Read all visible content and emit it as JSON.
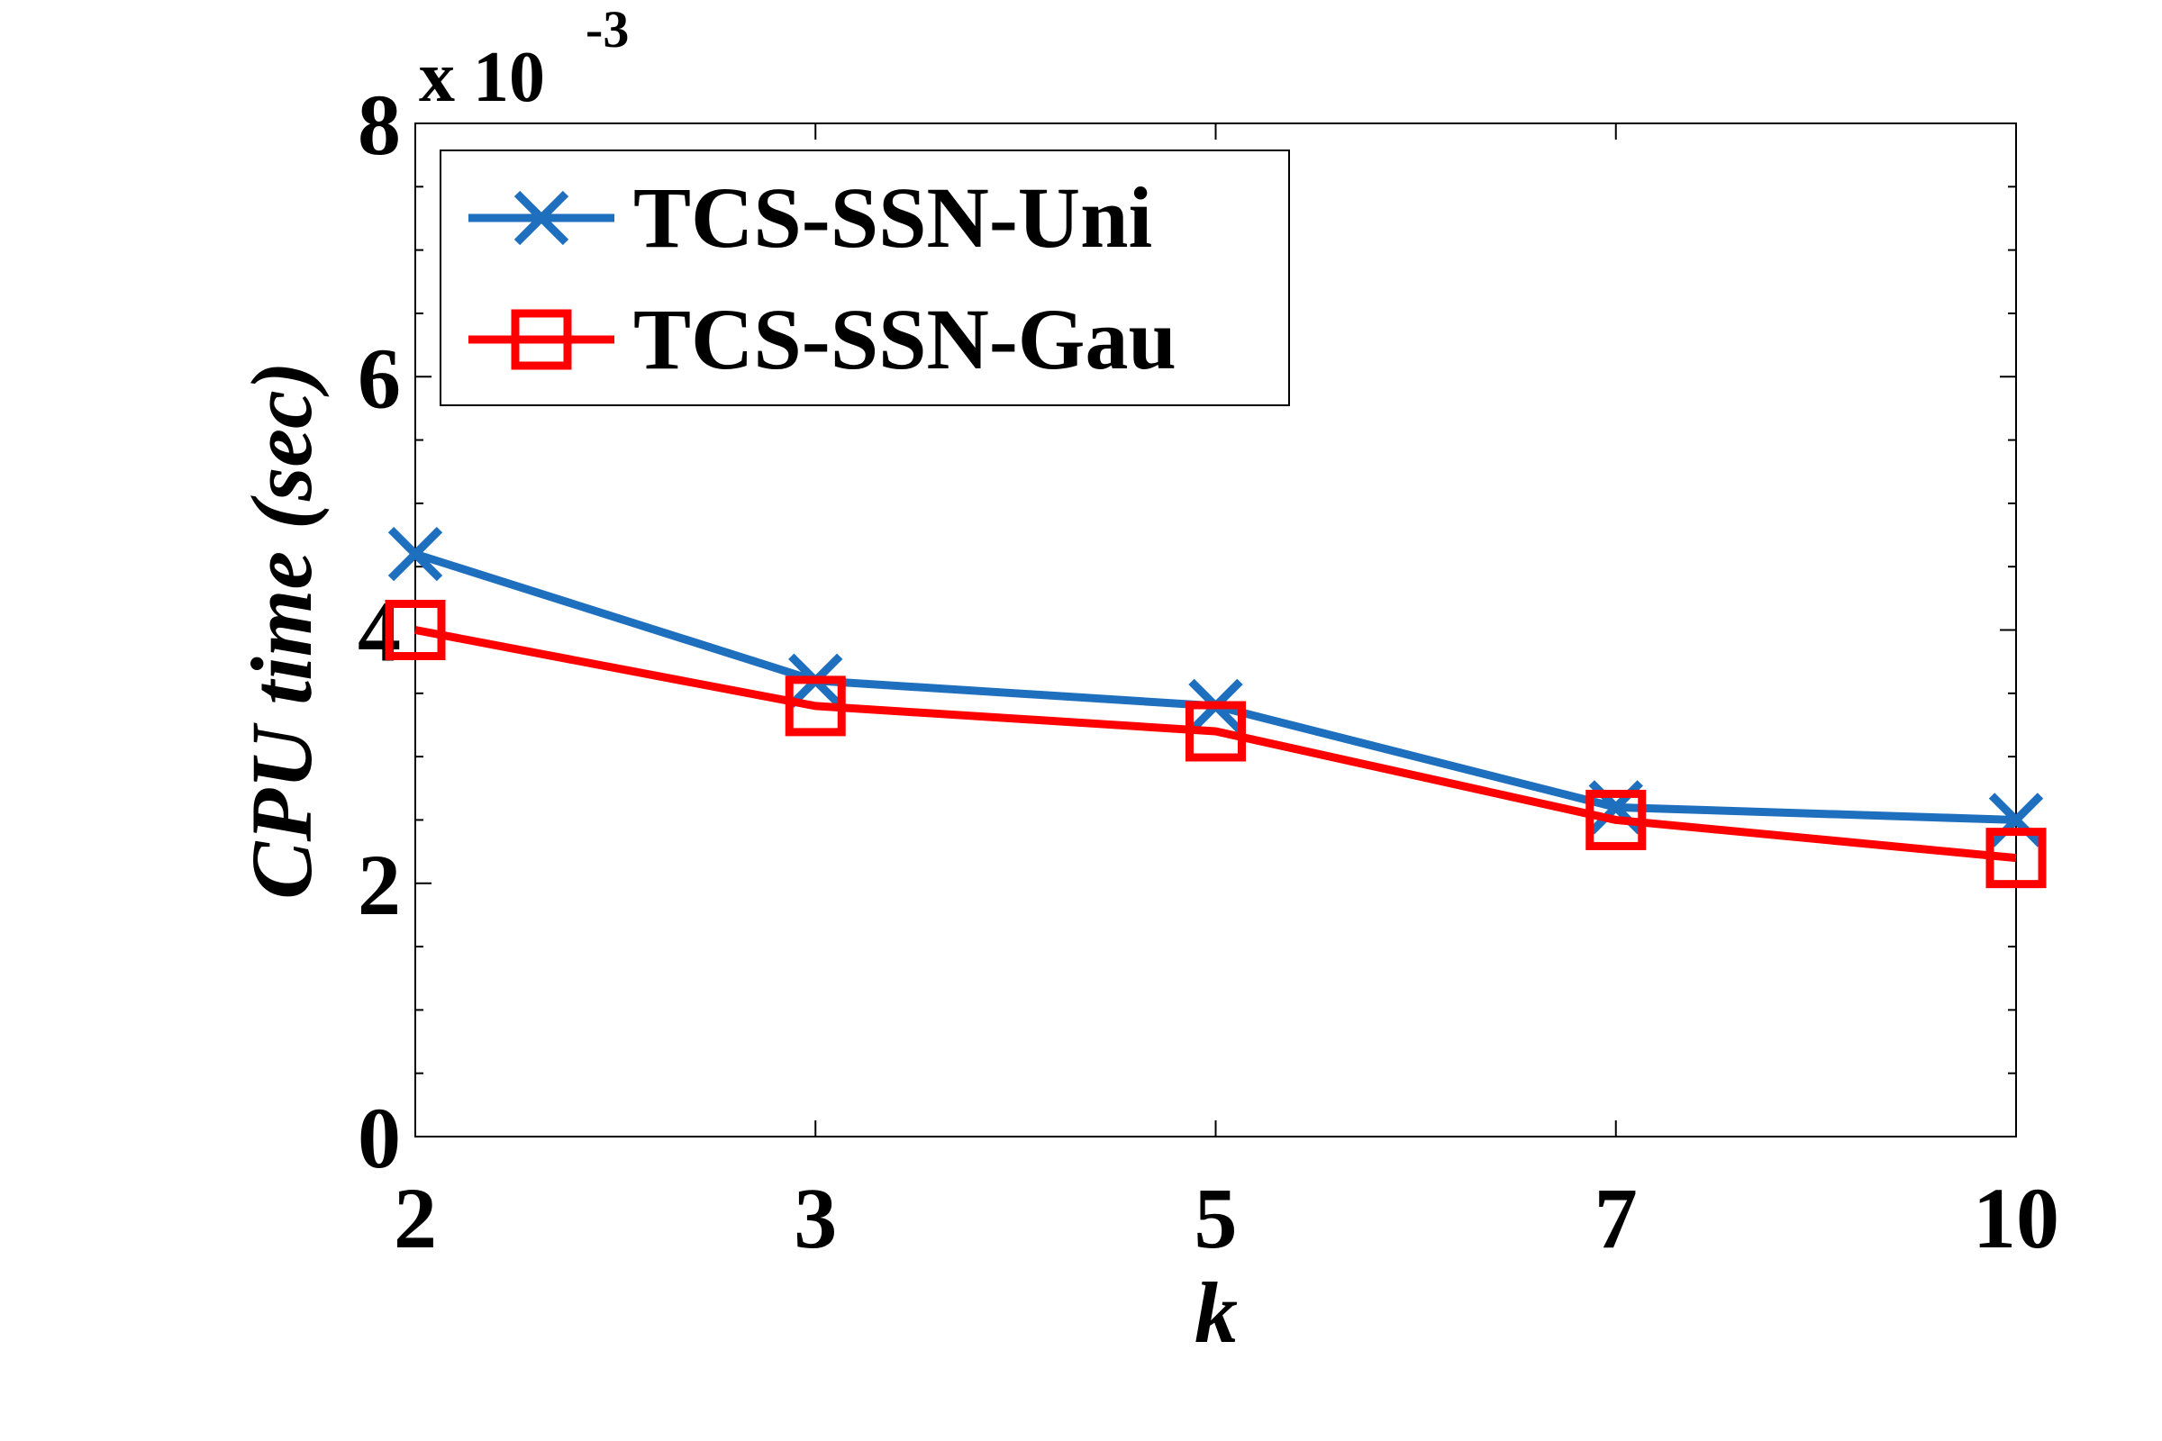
{
  "chart_data": {
    "type": "line",
    "categories": [
      "2",
      "3",
      "5",
      "7",
      "10"
    ],
    "xlabel": "k",
    "ylabel": "CPU time (sec)",
    "ylim": [
      0,
      0.008
    ],
    "yticks": [
      "0",
      "2",
      "4",
      "6",
      "8"
    ],
    "y_multiplier": "x 10",
    "y_multiplier_exponent": "-3",
    "grid": false,
    "legend_position": "top-left",
    "series": [
      {
        "name": "TCS-SSN-Uni",
        "color": "#1f6fbf",
        "marker": "x",
        "values": [
          0.0046,
          0.0036,
          0.0034,
          0.0026,
          0.0025
        ]
      },
      {
        "name": "TCS-SSN-Gau",
        "color": "#ff0000",
        "marker": "square",
        "values": [
          0.004,
          0.0034,
          0.0032,
          0.0025,
          0.0022
        ]
      }
    ]
  }
}
